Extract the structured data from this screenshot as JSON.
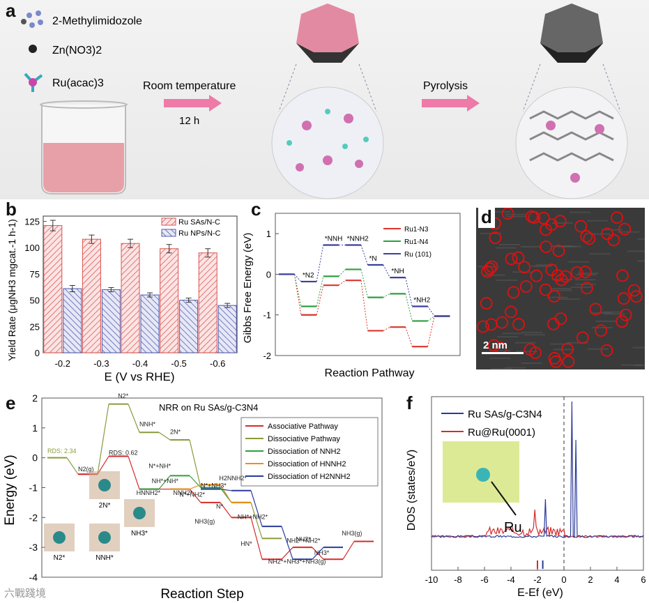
{
  "panel_labels": {
    "a": "a",
    "b": "b",
    "c": "c",
    "d": "d",
    "e": "e",
    "f": "f"
  },
  "panel_a": {
    "legend": [
      "2-Methylimidozole",
      "Zn(NO3)2",
      "Ru(acac)3"
    ],
    "step1_label": "Room temperature",
    "step1_time": "12 h",
    "step2_label": "Pyrolysis"
  },
  "panel_b": {
    "chart_data": {
      "type": "bar",
      "categories": [
        "-0.2",
        "-0.3",
        "-0.4",
        "-0.5",
        "-0.6"
      ],
      "series": [
        {
          "name": "Ru SAs/N-C",
          "values": [
            121,
            108,
            104,
            99,
            95
          ],
          "errors": [
            5,
            4,
            4,
            4,
            4
          ],
          "color": "#d9534f"
        },
        {
          "name": "Ru NPs/N-C",
          "values": [
            61,
            60,
            55,
            50,
            45
          ],
          "errors": [
            3,
            2,
            2,
            2,
            2
          ],
          "color": "#5058a8"
        }
      ],
      "xlabel": "E (V vs RHE)",
      "ylabel": "Yield Rate (μgNH3 mgcat.-1 h-1)",
      "ylim": [
        0,
        130
      ],
      "yticks": [
        "0",
        "25",
        "50",
        "75",
        "100",
        "125"
      ]
    }
  },
  "panel_c": {
    "chart_data": {
      "type": "line",
      "series": [
        {
          "name": "Ru1-N3",
          "color": "#d9342b",
          "values": [
            0,
            -1.0,
            -0.27,
            -0.15,
            -1.39,
            -1.3,
            -1.78,
            -1.03
          ]
        },
        {
          "name": "Ru1-N4",
          "color": "#2e9e3e",
          "values": [
            0,
            -0.79,
            -0.05,
            0.12,
            -0.57,
            -0.48,
            -1.15,
            -1.03
          ]
        },
        {
          "name": "Ru (101)",
          "color": "#3a3f9a",
          "values": [
            0,
            -0.18,
            0.72,
            0.72,
            0.23,
            -0.08,
            -0.79,
            -1.03
          ]
        }
      ],
      "step_labels": [
        "*N2",
        "*NNH",
        "*NNH2",
        "*N",
        "*NH",
        "*NH2"
      ],
      "xlabel": "Reaction Pathway",
      "ylabel": "Gibbs Free Energy (eV)",
      "ylim": [
        -2,
        1.5
      ],
      "yticks": [
        "-2",
        "-1",
        "0",
        "1"
      ]
    }
  },
  "panel_d": {
    "scale_bar": "2 nm"
  },
  "panel_e": {
    "chart_data": {
      "type": "line",
      "title": "NRR on Ru SAs/g-C3N4",
      "xlabel": "Reaction Step",
      "ylabel": "Energy (eV)",
      "ylim": [
        -4,
        2
      ],
      "yticks": [
        "-4",
        "-3",
        "-2",
        "-1",
        "0",
        "1",
        "2"
      ],
      "series": [
        {
          "name": "Associative Pathway",
          "color": "#d62a2a"
        },
        {
          "name": "Dissociative Pathway",
          "color": "#8a9a3a"
        },
        {
          "name": "Dissociation of NNH2",
          "color": "#2e9e3e"
        },
        {
          "name": "Dissociation of HNNH2",
          "color": "#e8901a"
        },
        {
          "name": "Dissociation of H2NNH2",
          "color": "#2a3a9a"
        }
      ],
      "annotations": [
        "RDS: 2.34",
        "RDS: 0.62",
        "N2(g)",
        "N2*",
        "NNH*",
        "2N*",
        "N*+NH*",
        "NH*+NH*",
        "N*+NH2*",
        "N*+NH3*",
        "HNNH2*",
        "H2NNH2*",
        "NNH2*",
        "NH*+NH2*",
        "N*",
        "HN*",
        "NH2*+NH2*",
        "NH3(g)",
        "NH2*+NH3*+NH3(g)",
        "NH2*",
        "NH3*",
        "NH3(g)"
      ],
      "structure_labels": [
        "N2*",
        "2N*",
        "NNH*",
        "NH3*"
      ]
    }
  },
  "panel_f": {
    "chart_data": {
      "type": "line",
      "series": [
        {
          "name": "Ru SAs/g-C3N4",
          "color": "#2a3a9a"
        },
        {
          "name": "Ru@Ru(0001)",
          "color": "#d62a2a"
        }
      ],
      "xlabel": "E-Ef (eV)",
      "ylabel": "DOS (states/eV)",
      "xlim": [
        -10,
        6
      ],
      "xticks": [
        "-10",
        "-8",
        "-6",
        "-4",
        "-2",
        "0",
        "2",
        "4",
        "6"
      ],
      "inset_label": "Ru"
    }
  },
  "watermark": "六戰踐境"
}
